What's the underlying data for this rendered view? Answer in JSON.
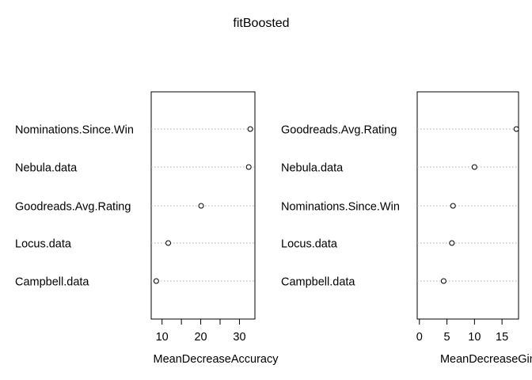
{
  "title": "fitBoosted",
  "chart_data": [
    {
      "type": "scatter",
      "xlabel": "MeanDecreaseAccuracy",
      "labels": [
        "Nominations.Since.Win",
        "Nebula.data",
        "Goodreads.Avg.Rating",
        "Locus.data",
        "Campbell.data"
      ],
      "values": [
        32.8,
        32.4,
        20.1,
        11.6,
        8.5
      ],
      "xlim": [
        7.2,
        34.0
      ],
      "ticks": [
        10,
        15,
        20,
        25,
        30
      ],
      "tick_labels": [
        "10",
        "",
        "20",
        "",
        "30"
      ]
    },
    {
      "type": "scatter",
      "xlabel": "MeanDecreaseGini",
      "labels": [
        "Goodreads.Avg.Rating",
        "Nebula.data",
        "Nominations.Since.Win",
        "Locus.data",
        "Campbell.data"
      ],
      "values": [
        17.6,
        10.0,
        6.1,
        5.9,
        4.4
      ],
      "xlim": [
        -0.4,
        18.0
      ],
      "ticks": [
        0,
        5,
        10,
        15
      ],
      "tick_labels": [
        "0",
        "5",
        "10",
        "15"
      ]
    }
  ]
}
